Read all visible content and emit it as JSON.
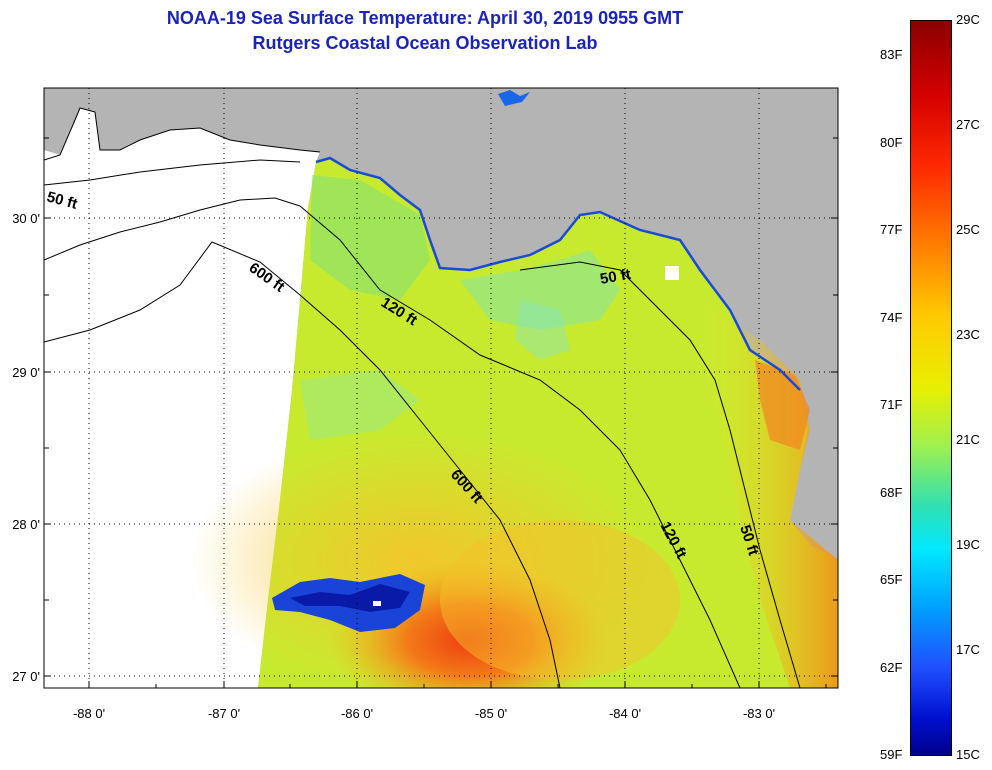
{
  "title": {
    "line1": "NOAA-19 Sea Surface Temperature:  April 30, 2019 0955 GMT",
    "line2": "Rutgers Coastal Ocean Observation Lab"
  },
  "map": {
    "region": "Northeastern Gulf of Mexico / Florida Big Bend",
    "land_color": "#b4b4b4",
    "lat_labels": [
      "30 0'",
      "29 0'",
      "28 0'",
      "27 0'"
    ],
    "lon_labels": [
      "-88 0'",
      "-87 0'",
      "-86 0'",
      "-85 0'",
      "-84 0'",
      "-83 0'"
    ],
    "contours": [
      "50 ft",
      "600 ft",
      "120 ft",
      "50 ft",
      "600 ft",
      "120 ft",
      "50 ft"
    ]
  },
  "colorbar": {
    "fahrenheit": [
      "83F",
      "80F",
      "77F",
      "74F",
      "71F",
      "68F",
      "65F",
      "62F",
      "59F"
    ],
    "celsius": [
      "29C",
      "27C",
      "25C",
      "23C",
      "21C",
      "19C",
      "17C",
      "15C"
    ],
    "max_color": "#8b0000",
    "min_color": "#00008b"
  }
}
